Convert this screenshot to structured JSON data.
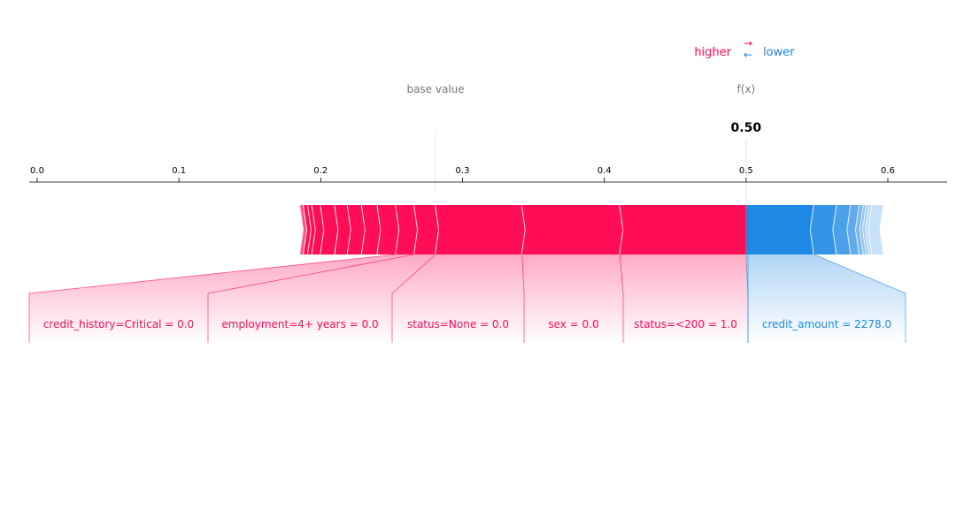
{
  "legend": {
    "higher": "higher",
    "lower": "lower",
    "arrow_right": "→",
    "arrow_left": "←"
  },
  "labels": {
    "base_value": "base value",
    "fx": "f(x)",
    "fx_value": "0.50"
  },
  "colors": {
    "positive": "#ff0d57",
    "negative": "#1e88e5",
    "axis": "#000000",
    "muted": "#777777"
  },
  "chart_data": {
    "type": "force",
    "base_value": 0.281,
    "output_value": 0.5,
    "xlim": [
      -0.005,
      0.64
    ],
    "ticks": [
      0.0,
      0.1,
      0.2,
      0.3,
      0.4,
      0.5,
      0.6
    ],
    "tick_labels": [
      "0.0",
      "0.1",
      "0.2",
      "0.3",
      "0.4",
      "0.5",
      "0.6"
    ],
    "positive_boundaries": [
      0.186,
      0.188,
      0.191,
      0.194,
      0.2,
      0.21,
      0.219,
      0.229,
      0.24,
      0.253,
      0.266,
      0.281,
      0.342,
      0.411,
      0.5
    ],
    "negative_boundaries": [
      0.5,
      0.548,
      0.564,
      0.574,
      0.58,
      0.583,
      0.585,
      0.587,
      0.589,
      0.596
    ],
    "features": [
      {
        "label": "credit_history=Critical = 0.0",
        "start": 0.253,
        "end": 0.266,
        "sign": "positive"
      },
      {
        "label": "employment=4+ years = 0.0",
        "start": 0.266,
        "end": 0.281,
        "sign": "positive"
      },
      {
        "label": "status=None = 0.0",
        "start": 0.281,
        "end": 0.342,
        "sign": "positive"
      },
      {
        "label": "sex = 0.0",
        "start": 0.342,
        "end": 0.411,
        "sign": "positive"
      },
      {
        "label": "status=<200 = 1.0",
        "start": 0.411,
        "end": 0.5,
        "sign": "positive"
      },
      {
        "label": "credit_amount = 2278.0",
        "start": 0.5,
        "end": 0.548,
        "sign": "negative"
      }
    ]
  }
}
